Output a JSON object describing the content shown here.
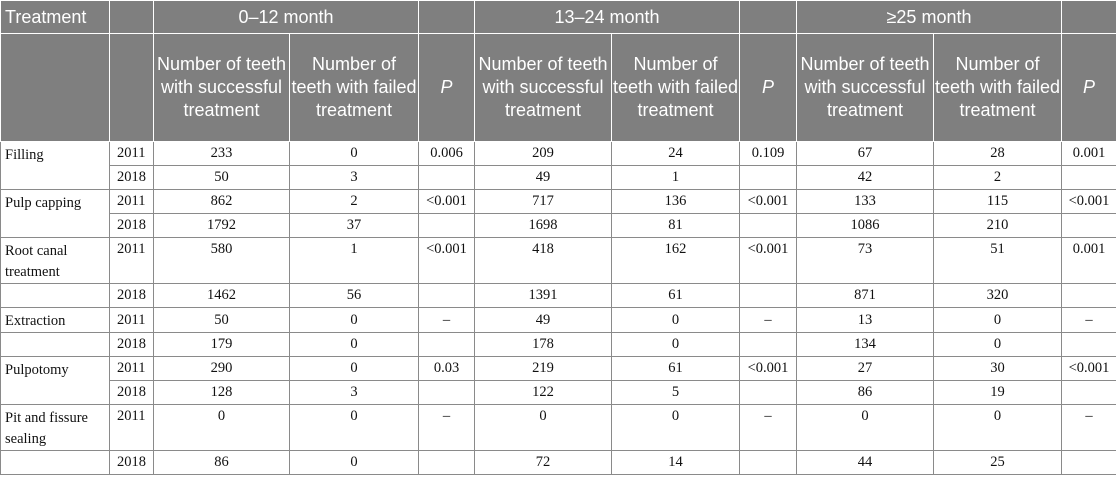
{
  "header": {
    "treatment": "Treatment",
    "groups": [
      "0–12 month",
      "13–24 month",
      "≥25 month"
    ],
    "col_success": "Number of teeth with successful treatment",
    "col_failed": "Number of teeth with failed treatment",
    "col_p": "P"
  },
  "rows": [
    {
      "treatment": "Filling",
      "y2011": [
        "2011",
        "233",
        "0",
        "0.006",
        "209",
        "24",
        "0.109",
        "67",
        "28",
        "0.001"
      ],
      "y2018": [
        "2018",
        "50",
        "3",
        "",
        "49",
        "1",
        "",
        "42",
        "2",
        ""
      ]
    },
    {
      "treatment": "Pulp capping",
      "y2011": [
        "2011",
        "862",
        "2",
        "<0.001",
        "717",
        "136",
        "<0.001",
        "133",
        "115",
        "<0.001"
      ],
      "y2018": [
        "2018",
        "1792",
        "37",
        "",
        "1698",
        "81",
        "",
        "1086",
        "210",
        ""
      ]
    },
    {
      "treatment": "Root canal treatment",
      "y2011": [
        "2011",
        "580",
        "1",
        "<0.001",
        "418",
        "162",
        "<0.001",
        "73",
        "51",
        "0.001"
      ],
      "y2018": [
        "2018",
        "1462",
        "56",
        "",
        "1391",
        "61",
        "",
        "871",
        "320",
        ""
      ]
    },
    {
      "treatment": "Extraction",
      "y2011": [
        "2011",
        "50",
        "0",
        "–",
        "49",
        "0",
        "–",
        "13",
        "0",
        "–"
      ],
      "y2018": [
        "2018",
        "179",
        "0",
        "",
        "178",
        "0",
        "",
        "134",
        "0",
        ""
      ]
    },
    {
      "treatment": "Pulpotomy",
      "y2011": [
        "2011",
        "290",
        "0",
        "0.03",
        "219",
        "61",
        "<0.001",
        "27",
        "30",
        "<0.001"
      ],
      "y2018": [
        "2018",
        "128",
        "3",
        "",
        "122",
        "5",
        "",
        "86",
        "19",
        ""
      ]
    },
    {
      "treatment": "Pit and fissure sealing",
      "y2011": [
        "2011",
        "0",
        "0",
        "–",
        "0",
        "0",
        "–",
        "0",
        "0",
        "–"
      ],
      "y2018": [
        "2018",
        "86",
        "0",
        "",
        "72",
        "14",
        "",
        "44",
        "25",
        ""
      ]
    }
  ]
}
